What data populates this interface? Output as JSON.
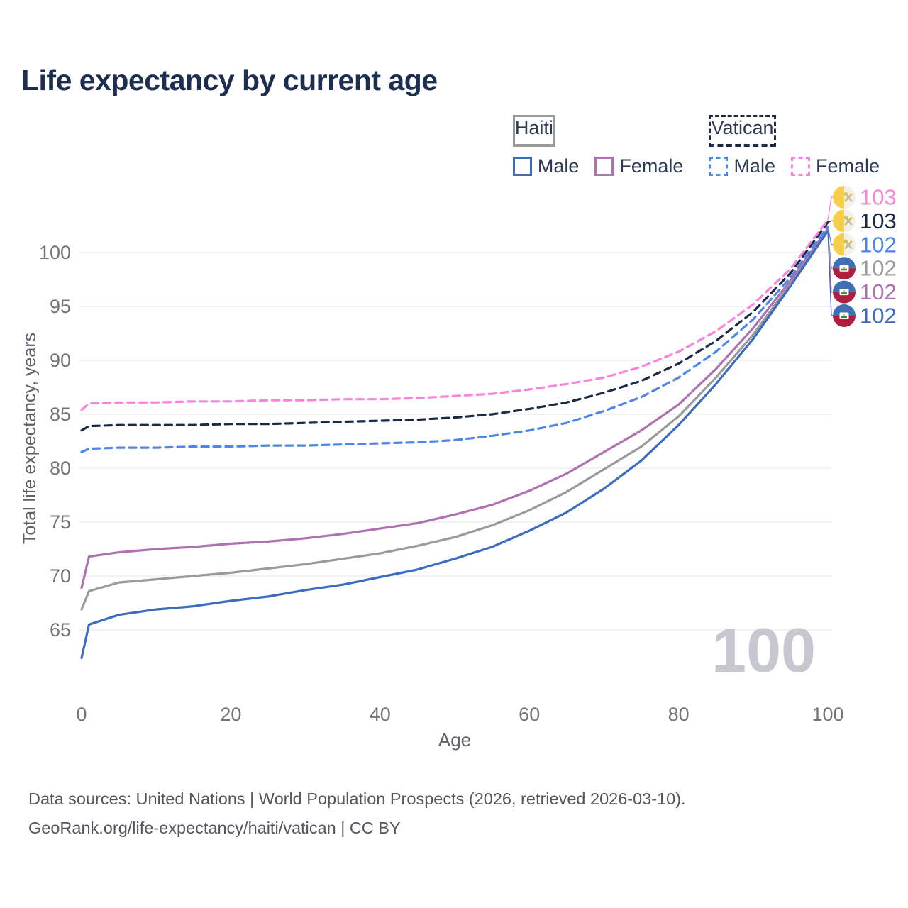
{
  "title": "Life expectancy by current age",
  "legend": {
    "groups": [
      {
        "label": "Haiti",
        "underline_style": "solid",
        "underline_color": "#9a9a9a",
        "items": [
          {
            "label": "Male",
            "color": "#3b6cbf",
            "style": "solid"
          },
          {
            "label": "Female",
            "color": "#b071b1",
            "style": "solid"
          }
        ]
      },
      {
        "label": "Vatican",
        "underline_style": "dashed",
        "underline_color": "#1b2a45",
        "items": [
          {
            "label": "Male",
            "color": "#4d86ea",
            "style": "dashed"
          },
          {
            "label": "Female",
            "color": "#f983dd",
            "style": "dashed"
          }
        ]
      }
    ]
  },
  "watermark": "100",
  "footer": {
    "line1": "Data sources: United Nations | World Population Prospects (2026, retrieved 2026-03-10).",
    "line2": "GeoRank.org/life-expectancy/haiti/vatican | CC BY"
  },
  "chart_data": {
    "type": "line",
    "title": "Life expectancy by current age",
    "xlabel": "Age",
    "ylabel": "Total life expectancy, years",
    "xlim": [
      0,
      100
    ],
    "ylim": [
      61,
      104
    ],
    "x_ticks": [
      0,
      20,
      40,
      60,
      80,
      100
    ],
    "y_ticks": [
      65,
      70,
      75,
      80,
      85,
      90,
      95,
      100
    ],
    "grid": "horizontal-only",
    "legend_position": "top-right",
    "x": [
      0,
      1,
      5,
      10,
      15,
      20,
      25,
      30,
      35,
      40,
      45,
      50,
      55,
      60,
      65,
      70,
      75,
      80,
      85,
      90,
      95,
      100
    ],
    "series": [
      {
        "name": "Haiti Total",
        "country": "Haiti",
        "color": "#9a9a9a",
        "dash": false,
        "values": [
          66.9,
          68.6,
          69.4,
          69.7,
          70.0,
          70.3,
          70.7,
          71.1,
          71.6,
          72.1,
          72.8,
          73.6,
          74.7,
          76.1,
          77.8,
          79.9,
          82.0,
          84.8,
          88.4,
          92.4,
          97.1,
          102.1
        ]
      },
      {
        "name": "Haiti Female",
        "country": "Haiti",
        "color": "#b071b1",
        "dash": false,
        "values": [
          68.9,
          71.8,
          72.2,
          72.5,
          72.7,
          73.0,
          73.2,
          73.5,
          73.9,
          74.4,
          74.9,
          75.7,
          76.6,
          77.9,
          79.5,
          81.5,
          83.5,
          85.9,
          89.2,
          93.0,
          97.4,
          102.2
        ]
      },
      {
        "name": "Haiti Male",
        "country": "Haiti",
        "color": "#3b6cbf",
        "dash": false,
        "values": [
          62.4,
          65.5,
          66.4,
          66.9,
          67.2,
          67.7,
          68.1,
          68.7,
          69.2,
          69.9,
          70.6,
          71.6,
          72.7,
          74.2,
          75.9,
          78.1,
          80.7,
          84.0,
          87.8,
          92.0,
          96.9,
          102.0
        ]
      },
      {
        "name": "Vatican Male",
        "country": "Vatican",
        "color": "#4d86ea",
        "dash": true,
        "values": [
          81.5,
          81.8,
          81.9,
          81.9,
          82.0,
          82.0,
          82.1,
          82.1,
          82.2,
          82.3,
          82.4,
          82.6,
          83.0,
          83.5,
          84.2,
          85.3,
          86.6,
          88.4,
          90.8,
          93.8,
          97.7,
          102.4
        ]
      },
      {
        "name": "Vatican Total",
        "country": "Vatican",
        "color": "#1b2a45",
        "dash": true,
        "values": [
          83.5,
          83.9,
          84.0,
          84.0,
          84.0,
          84.1,
          84.1,
          84.2,
          84.3,
          84.4,
          84.5,
          84.7,
          85.0,
          85.5,
          86.1,
          87.0,
          88.1,
          89.7,
          91.8,
          94.5,
          98.1,
          102.8
        ]
      },
      {
        "name": "Vatican Female",
        "country": "Vatican",
        "color": "#f983dd",
        "dash": true,
        "values": [
          85.4,
          86.0,
          86.1,
          86.1,
          86.2,
          86.2,
          86.3,
          86.3,
          86.4,
          86.4,
          86.5,
          86.7,
          86.9,
          87.3,
          87.8,
          88.4,
          89.4,
          90.8,
          92.7,
          95.2,
          98.5,
          103.0
        ]
      }
    ],
    "endpoint_labels": [
      {
        "series": "Vatican Female",
        "value": "103",
        "color": "#f983dd",
        "flag": "vatican"
      },
      {
        "series": "Vatican Total",
        "value": "103",
        "color": "#1b2a45",
        "flag": "vatican"
      },
      {
        "series": "Vatican Male",
        "value": "102",
        "color": "#4d86ea",
        "flag": "vatican"
      },
      {
        "series": "Haiti Total",
        "value": "102",
        "color": "#9a9a9a",
        "flag": "haiti"
      },
      {
        "series": "Haiti Female",
        "value": "102",
        "color": "#b071b1",
        "flag": "haiti"
      },
      {
        "series": "Haiti Male",
        "value": "102",
        "color": "#3b6cbf",
        "flag": "haiti"
      }
    ],
    "flag_colors": {
      "haiti_blue": "#3f6fb4",
      "haiti_red": "#b01d3e",
      "vatican_yellow": "#f6cf4a",
      "vatican_white": "#f2f0e9",
      "key_gold": "#d9b93c",
      "key_silver": "#bdbdbd"
    },
    "colors": {
      "grid": "#ededf0",
      "tick_text": "#737378",
      "axis_label": "#5f6167",
      "watermark": "#c6c7cf",
      "title": "#1d2e50"
    }
  }
}
